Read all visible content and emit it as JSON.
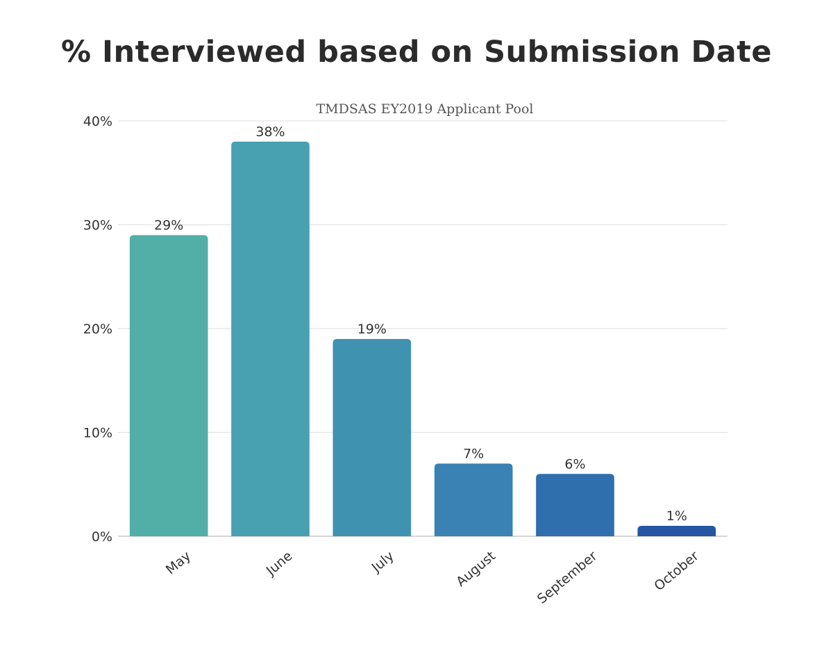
{
  "title": "% Interviewed based on Submission Date",
  "chart_data": {
    "type": "bar",
    "subtitle": "TMDSAS EY2019 Applicant Pool",
    "categories": [
      "May",
      "June",
      "July",
      "August",
      "September",
      "October"
    ],
    "values": [
      29,
      38,
      19,
      7,
      6,
      1
    ],
    "value_labels": [
      "29%",
      "38%",
      "19%",
      "7%",
      "6%",
      "1%"
    ],
    "bar_colors": [
      "#52afa8",
      "#48a1b0",
      "#4092b1",
      "#3982b3",
      "#2f6fad",
      "#2656a3"
    ],
    "ylim": [
      0,
      40
    ],
    "yticks": [
      0,
      10,
      20,
      30,
      40
    ],
    "ytick_labels": [
      "0%",
      "10%",
      "20%",
      "30%",
      "40%"
    ],
    "xlabel": "",
    "ylabel": "",
    "grid": true,
    "legend": "none",
    "gridline_color": "#e3e3e3",
    "text_color": "#333333"
  }
}
